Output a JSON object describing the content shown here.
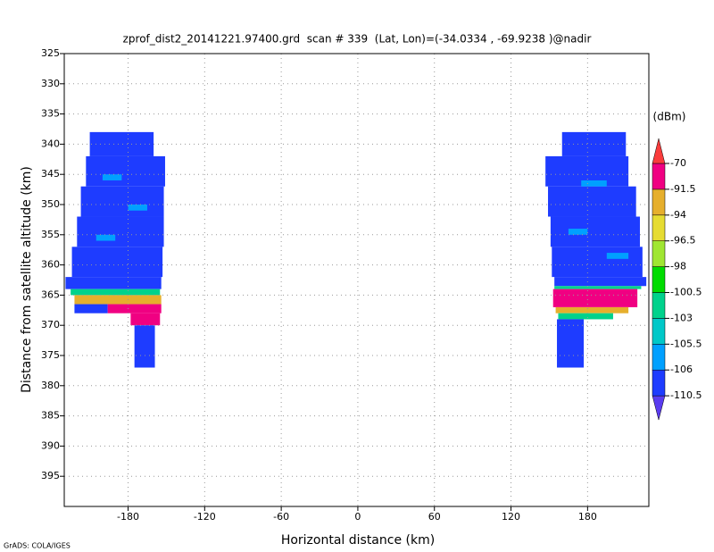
{
  "chart_data": {
    "type": "heatmap",
    "title": "zprof_dist2_20141221.97400.grd  scan # 339  (Lat, Lon)=(-34.0334 , -69.9238 )@nadir",
    "xlabel": "Horizontal distance (km)",
    "ylabel": "Distance from satellite altitude (km)",
    "footer": "GrADS: COLA/IGES",
    "xlim": [
      -230,
      228
    ],
    "xticks": [
      -180,
      -120,
      -60,
      0,
      60,
      120,
      180
    ],
    "ylim": [
      400,
      325
    ],
    "yticks": [
      325,
      330,
      335,
      340,
      345,
      350,
      355,
      360,
      365,
      370,
      375,
      380,
      385,
      390,
      395
    ],
    "grid": true,
    "colorbar": {
      "label": "(dBm)",
      "levels": [
        -110.5,
        -106,
        -105.5,
        -103,
        -100.5,
        -98,
        -96.5,
        -94,
        -91.5,
        -70
      ],
      "colors": [
        "#5a3cf0",
        "#1e3cff",
        "#00a0ff",
        "#00c8c8",
        "#00d28c",
        "#00dc00",
        "#a0e632",
        "#e6dc32",
        "#e6af2d",
        "#f00082",
        "#fa3c3c"
      ]
    },
    "cells": [
      {
        "x": [
          -210,
          -160
        ],
        "y": [
          338,
          342
        ],
        "value": -109
      },
      {
        "x": [
          -213,
          -151
        ],
        "y": [
          342,
          347
        ],
        "value": -109
      },
      {
        "x": [
          -217,
          -152
        ],
        "y": [
          347,
          352
        ],
        "value": -109
      },
      {
        "x": [
          -220,
          -152
        ],
        "y": [
          352,
          357
        ],
        "value": -109
      },
      {
        "x": [
          -224,
          -153
        ],
        "y": [
          357,
          362
        ],
        "value": -109
      },
      {
        "x": [
          -229,
          -154
        ],
        "y": [
          362,
          364
        ],
        "value": -109
      },
      {
        "x": [
          -225,
          -155
        ],
        "y": [
          364,
          365
        ],
        "value": -102
      },
      {
        "x": [
          -222,
          -154
        ],
        "y": [
          365,
          366.5
        ],
        "value": -93
      },
      {
        "x": [
          -222,
          -196
        ],
        "y": [
          366.5,
          368
        ],
        "value": -109
      },
      {
        "x": [
          -196,
          -154
        ],
        "y": [
          366.5,
          368
        ],
        "value": -85
      },
      {
        "x": [
          -178,
          -155
        ],
        "y": [
          368,
          370
        ],
        "value": -85
      },
      {
        "x": [
          -175,
          -159
        ],
        "y": [
          370,
          377
        ],
        "value": -109
      },
      {
        "x": [
          -200,
          -185
        ],
        "y": [
          345,
          346
        ],
        "value": -105.8
      },
      {
        "x": [
          -205,
          -190
        ],
        "y": [
          355,
          356
        ],
        "value": -105.8
      },
      {
        "x": [
          -180,
          -165
        ],
        "y": [
          350,
          351
        ],
        "value": -105.8
      },
      {
        "x": [
          160,
          210
        ],
        "y": [
          338,
          342
        ],
        "value": -109
      },
      {
        "x": [
          147,
          212
        ],
        "y": [
          342,
          347
        ],
        "value": -109
      },
      {
        "x": [
          149,
          218
        ],
        "y": [
          347,
          352
        ],
        "value": -109
      },
      {
        "x": [
          151,
          221
        ],
        "y": [
          352,
          357
        ],
        "value": -109
      },
      {
        "x": [
          152,
          223
        ],
        "y": [
          357,
          362
        ],
        "value": -109
      },
      {
        "x": [
          154,
          226
        ],
        "y": [
          362,
          363.5
        ],
        "value": -109
      },
      {
        "x": [
          154,
          222
        ],
        "y": [
          363.5,
          364
        ],
        "value": -102
      },
      {
        "x": [
          153,
          219
        ],
        "y": [
          364,
          367
        ],
        "value": -85
      },
      {
        "x": [
          155,
          212
        ],
        "y": [
          367,
          368
        ],
        "value": -93
      },
      {
        "x": [
          157,
          200
        ],
        "y": [
          368,
          369
        ],
        "value": -102
      },
      {
        "x": [
          156,
          177
        ],
        "y": [
          369,
          377
        ],
        "value": -109
      },
      {
        "x": [
          175,
          195
        ],
        "y": [
          346,
          347
        ],
        "value": -105.8
      },
      {
        "x": [
          165,
          180
        ],
        "y": [
          354,
          355
        ],
        "value": -105.8
      },
      {
        "x": [
          195,
          212
        ],
        "y": [
          358,
          359
        ],
        "value": -105.8
      }
    ]
  }
}
